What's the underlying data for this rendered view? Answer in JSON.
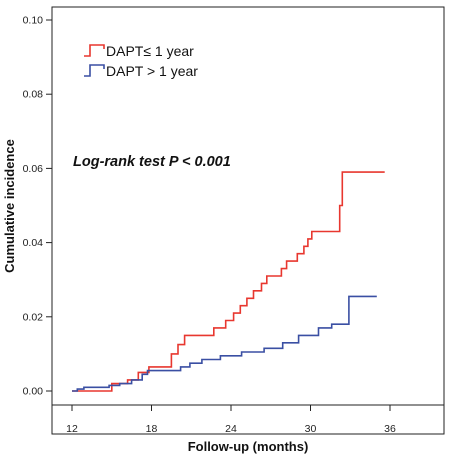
{
  "chart_data": {
    "type": "line",
    "step": true,
    "title": "",
    "xlabel": "Follow-up (months)",
    "ylabel": "Cumulative incidence",
    "xlim": [
      12,
      36
    ],
    "ylim": [
      0,
      0.1
    ],
    "x_ticks": [
      12,
      18,
      24,
      30,
      36
    ],
    "y_ticks": [
      0.0,
      0.02,
      0.04,
      0.06,
      0.08,
      0.1
    ],
    "x_tick_labels": [
      "12",
      "18",
      "24",
      "30",
      "36"
    ],
    "y_tick_labels": [
      "0.00",
      "0.02",
      "0.04",
      "0.06",
      "0.08",
      "0.10"
    ],
    "grid": false,
    "legend_position": "top-left",
    "annotation": "Log-rank test P < 0.001",
    "series": [
      {
        "name": "DAPT≤ 1 year",
        "color": "#e8372f",
        "points": [
          [
            12.0,
            0.0
          ],
          [
            15.0,
            0.0
          ],
          [
            15.0,
            0.002
          ],
          [
            16.2,
            0.002
          ],
          [
            16.2,
            0.003
          ],
          [
            17.0,
            0.003
          ],
          [
            17.0,
            0.005
          ],
          [
            17.8,
            0.005
          ],
          [
            17.8,
            0.0065
          ],
          [
            19.5,
            0.0065
          ],
          [
            19.5,
            0.01
          ],
          [
            20.0,
            0.01
          ],
          [
            20.0,
            0.0125
          ],
          [
            20.5,
            0.0125
          ],
          [
            20.5,
            0.015
          ],
          [
            22.7,
            0.015
          ],
          [
            22.7,
            0.017
          ],
          [
            23.6,
            0.017
          ],
          [
            23.6,
            0.019
          ],
          [
            24.2,
            0.019
          ],
          [
            24.2,
            0.021
          ],
          [
            24.7,
            0.021
          ],
          [
            24.7,
            0.023
          ],
          [
            25.2,
            0.023
          ],
          [
            25.2,
            0.025
          ],
          [
            25.7,
            0.025
          ],
          [
            25.7,
            0.027
          ],
          [
            26.3,
            0.027
          ],
          [
            26.3,
            0.029
          ],
          [
            26.7,
            0.029
          ],
          [
            26.7,
            0.031
          ],
          [
            27.8,
            0.031
          ],
          [
            27.8,
            0.033
          ],
          [
            28.2,
            0.033
          ],
          [
            28.2,
            0.035
          ],
          [
            29.0,
            0.035
          ],
          [
            29.0,
            0.037
          ],
          [
            29.5,
            0.037
          ],
          [
            29.5,
            0.039
          ],
          [
            29.8,
            0.039
          ],
          [
            29.8,
            0.041
          ],
          [
            30.1,
            0.041
          ],
          [
            30.1,
            0.043
          ],
          [
            32.2,
            0.043
          ],
          [
            32.2,
            0.05
          ],
          [
            32.4,
            0.05
          ],
          [
            32.4,
            0.059
          ],
          [
            35.6,
            0.059
          ]
        ]
      },
      {
        "name": "DAPT > 1 year",
        "color": "#3a4fa3",
        "points": [
          [
            12.0,
            0.0
          ],
          [
            12.4,
            0.0
          ],
          [
            12.4,
            0.0005
          ],
          [
            12.9,
            0.0005
          ],
          [
            12.9,
            0.001
          ],
          [
            14.8,
            0.001
          ],
          [
            14.8,
            0.0015
          ],
          [
            15.6,
            0.0015
          ],
          [
            15.6,
            0.002
          ],
          [
            16.5,
            0.002
          ],
          [
            16.5,
            0.003
          ],
          [
            17.3,
            0.003
          ],
          [
            17.3,
            0.0045
          ],
          [
            17.7,
            0.0045
          ],
          [
            17.7,
            0.0055
          ],
          [
            20.2,
            0.0055
          ],
          [
            20.2,
            0.0065
          ],
          [
            20.9,
            0.0065
          ],
          [
            20.9,
            0.0075
          ],
          [
            21.8,
            0.0075
          ],
          [
            21.8,
            0.0085
          ],
          [
            23.2,
            0.0085
          ],
          [
            23.2,
            0.0095
          ],
          [
            24.8,
            0.0095
          ],
          [
            24.8,
            0.0105
          ],
          [
            26.5,
            0.0105
          ],
          [
            26.5,
            0.0115
          ],
          [
            27.9,
            0.0115
          ],
          [
            27.9,
            0.013
          ],
          [
            29.1,
            0.013
          ],
          [
            29.1,
            0.015
          ],
          [
            30.6,
            0.015
          ],
          [
            30.6,
            0.017
          ],
          [
            31.6,
            0.017
          ],
          [
            31.6,
            0.018
          ],
          [
            32.9,
            0.018
          ],
          [
            32.9,
            0.0255
          ],
          [
            35.0,
            0.0255
          ]
        ]
      }
    ]
  }
}
